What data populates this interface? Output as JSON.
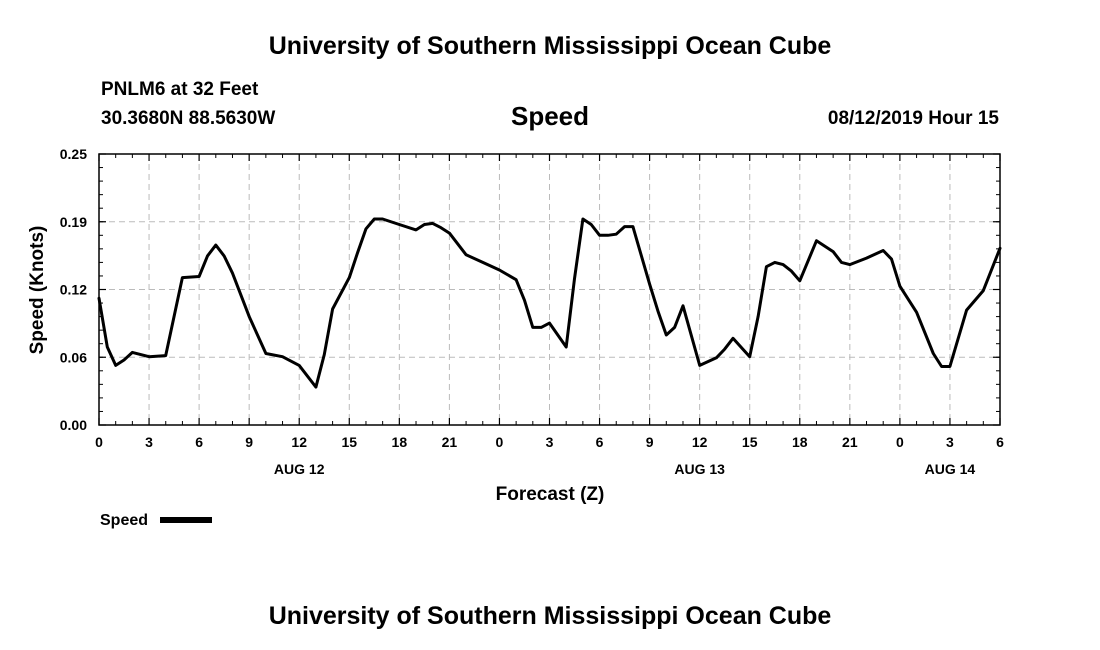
{
  "chart_data": {
    "type": "line",
    "title": "University of Southern Mississippi Ocean Cube",
    "footer_title": "University of Southern Mississippi Ocean Cube",
    "station": "PNLM6 at 32 Feet",
    "location": "30.3680N 88.5630W",
    "subtitle": "Speed",
    "timestamp": "08/12/2019 Hour 15",
    "xlabel": "Forecast (Z)",
    "ylabel": "Speed (Knots)",
    "ylim": [
      0,
      0.25
    ],
    "xlim": [
      0,
      54
    ],
    "y_ticks": [
      "0.00",
      "0.06",
      "0.12",
      "0.19",
      "0.25"
    ],
    "y_tick_values": [
      0,
      0.0625,
      0.125,
      0.1875,
      0.25
    ],
    "x_ticks": [
      "0",
      "3",
      "6",
      "9",
      "12",
      "15",
      "18",
      "21",
      "0",
      "3",
      "6",
      "9",
      "12",
      "15",
      "18",
      "21",
      "0",
      "3",
      "6"
    ],
    "day_labels": [
      {
        "label": "AUG 12",
        "at": 12
      },
      {
        "label": "AUG 13",
        "at": 36
      },
      {
        "label": "AUG 14",
        "at": 51
      }
    ],
    "grid": true,
    "legend_position": "bottom-left",
    "series": [
      {
        "name": "Speed",
        "color": "#000000",
        "x": [
          0,
          0.5,
          1,
          1.5,
          2,
          3,
          4,
          5,
          6,
          6.5,
          7,
          7.5,
          8,
          9,
          10,
          11,
          12,
          13,
          13.5,
          14,
          15,
          15.5,
          16,
          16.5,
          17,
          18,
          19,
          19.5,
          20,
          20.5,
          21,
          22,
          23,
          24,
          25,
          25.5,
          26,
          26.5,
          27,
          28,
          28.5,
          29,
          29.5,
          30,
          30.5,
          31,
          31.5,
          32,
          33,
          33.5,
          34,
          34.5,
          35,
          36,
          37,
          37.5,
          38,
          39,
          39.5,
          40,
          40.5,
          41,
          41.5,
          42,
          43,
          44,
          44.5,
          45,
          46,
          47,
          47.5,
          48,
          49,
          50,
          50.5,
          51,
          52,
          53,
          54
        ],
        "y": [
          0.117,
          0.072,
          0.055,
          0.06,
          0.067,
          0.063,
          0.064,
          0.136,
          0.137,
          0.156,
          0.166,
          0.156,
          0.14,
          0.1,
          0.066,
          0.063,
          0.055,
          0.035,
          0.065,
          0.107,
          0.136,
          0.159,
          0.181,
          0.19,
          0.19,
          0.185,
          0.18,
          0.185,
          0.186,
          0.182,
          0.177,
          0.157,
          0.15,
          0.143,
          0.134,
          0.115,
          0.09,
          0.09,
          0.094,
          0.072,
          0.135,
          0.19,
          0.185,
          0.175,
          0.175,
          0.176,
          0.183,
          0.183,
          0.13,
          0.105,
          0.083,
          0.09,
          0.11,
          0.055,
          0.062,
          0.07,
          0.08,
          0.063,
          0.1,
          0.146,
          0.15,
          0.148,
          0.142,
          0.133,
          0.17,
          0.16,
          0.15,
          0.148,
          0.154,
          0.161,
          0.153,
          0.128,
          0.104,
          0.066,
          0.054,
          0.054,
          0.106,
          0.124,
          0.163
        ]
      }
    ]
  }
}
